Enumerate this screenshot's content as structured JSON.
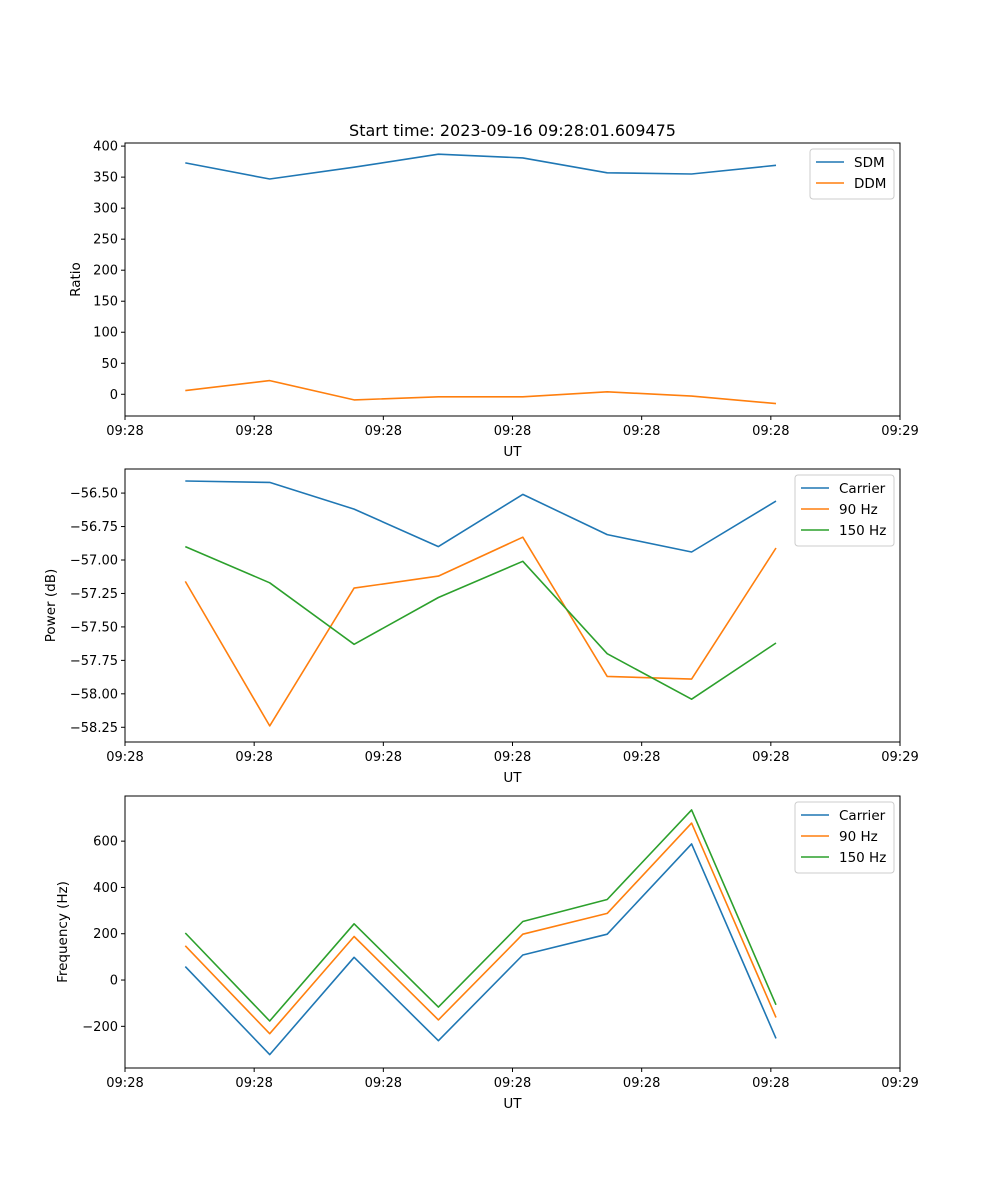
{
  "figure_title": "Start time: 2023-09-16 09:28:01.609475",
  "colors": {
    "blue": "#1f77b4",
    "orange": "#ff7f0e",
    "green": "#2ca02c"
  },
  "chart_data": [
    {
      "type": "line",
      "title": "Start time: 2023-09-16 09:28:01.609475",
      "xlabel": "UT",
      "ylabel": "Ratio",
      "xlim": [
        0,
        9
      ],
      "x_ticks": [
        0,
        1.5,
        3,
        4.5,
        6,
        7.5,
        9
      ],
      "x_tick_labels": [
        "09:28",
        "09:28",
        "09:28",
        "09:28",
        "09:28",
        "09:28",
        "09:29"
      ],
      "ylim": [
        -35,
        405
      ],
      "y_ticks": [
        0,
        50,
        100,
        150,
        200,
        250,
        300,
        350,
        400
      ],
      "y_tick_labels": [
        "0",
        "50",
        "100",
        "150",
        "200",
        "250",
        "300",
        "350",
        "400"
      ],
      "legend_position": "top-right",
      "x": [
        0.7,
        1.68,
        2.66,
        3.64,
        4.62,
        5.6,
        6.58,
        7.56
      ],
      "series": [
        {
          "name": "SDM",
          "color": "#1f77b4",
          "values": [
            373,
            347,
            366,
            387,
            381,
            357,
            355,
            369
          ]
        },
        {
          "name": "DDM",
          "color": "#ff7f0e",
          "values": [
            6,
            22,
            -9,
            -4,
            -4,
            4,
            -3,
            -15
          ]
        }
      ]
    },
    {
      "type": "line",
      "title": "",
      "xlabel": "UT",
      "ylabel": "Power (dB)",
      "xlim": [
        0,
        9
      ],
      "x_ticks": [
        0,
        1.5,
        3,
        4.5,
        6,
        7.5,
        9
      ],
      "x_tick_labels": [
        "09:28",
        "09:28",
        "09:28",
        "09:28",
        "09:28",
        "09:28",
        "09:29"
      ],
      "ylim": [
        -58.36,
        -56.32
      ],
      "y_ticks": [
        -58.25,
        -58.0,
        -57.75,
        -57.5,
        -57.25,
        -57.0,
        -56.75,
        -56.5
      ],
      "y_tick_labels": [
        "−58.25",
        "−58.00",
        "−57.75",
        "−57.50",
        "−57.25",
        "−57.00",
        "−56.75",
        "−56.50"
      ],
      "legend_position": "top-right",
      "x": [
        0.7,
        1.68,
        2.66,
        3.64,
        4.62,
        5.6,
        6.58,
        7.56
      ],
      "series": [
        {
          "name": "Carrier",
          "color": "#1f77b4",
          "values": [
            -56.41,
            -56.42,
            -56.62,
            -56.9,
            -56.51,
            -56.81,
            -56.94,
            -56.56
          ]
        },
        {
          "name": "90 Hz",
          "color": "#ff7f0e",
          "values": [
            -57.16,
            -58.24,
            -57.21,
            -57.12,
            -56.83,
            -57.87,
            -57.89,
            -56.91
          ]
        },
        {
          "name": "150 Hz",
          "color": "#2ca02c",
          "values": [
            -56.9,
            -57.17,
            -57.63,
            -57.28,
            -57.01,
            -57.7,
            -58.04,
            -57.62
          ]
        }
      ]
    },
    {
      "type": "line",
      "title": "",
      "xlabel": "UT",
      "ylabel": "Frequency (Hz)",
      "xlim": [
        0,
        9
      ],
      "x_ticks": [
        0,
        1.5,
        3,
        4.5,
        6,
        7.5,
        9
      ],
      "x_tick_labels": [
        "09:28",
        "09:28",
        "09:28",
        "09:28",
        "09:28",
        "09:28",
        "09:29"
      ],
      "ylim": [
        -380,
        795
      ],
      "y_ticks": [
        -200,
        0,
        200,
        400,
        600
      ],
      "y_tick_labels": [
        "−200",
        "0",
        "200",
        "400",
        "600"
      ],
      "legend_position": "top-right",
      "x": [
        0.7,
        1.68,
        2.66,
        3.64,
        4.62,
        5.6,
        6.58,
        7.56
      ],
      "series": [
        {
          "name": "Carrier",
          "color": "#1f77b4",
          "values": [
            58,
            -322,
            98,
            -262,
            108,
            198,
            588,
            -252
          ]
        },
        {
          "name": "90 Hz",
          "color": "#ff7f0e",
          "values": [
            148,
            -232,
            188,
            -172,
            198,
            288,
            678,
            -162
          ]
        },
        {
          "name": "150 Hz",
          "color": "#2ca02c",
          "values": [
            203,
            -177,
            243,
            -117,
            253,
            348,
            735,
            -107
          ]
        }
      ]
    }
  ]
}
